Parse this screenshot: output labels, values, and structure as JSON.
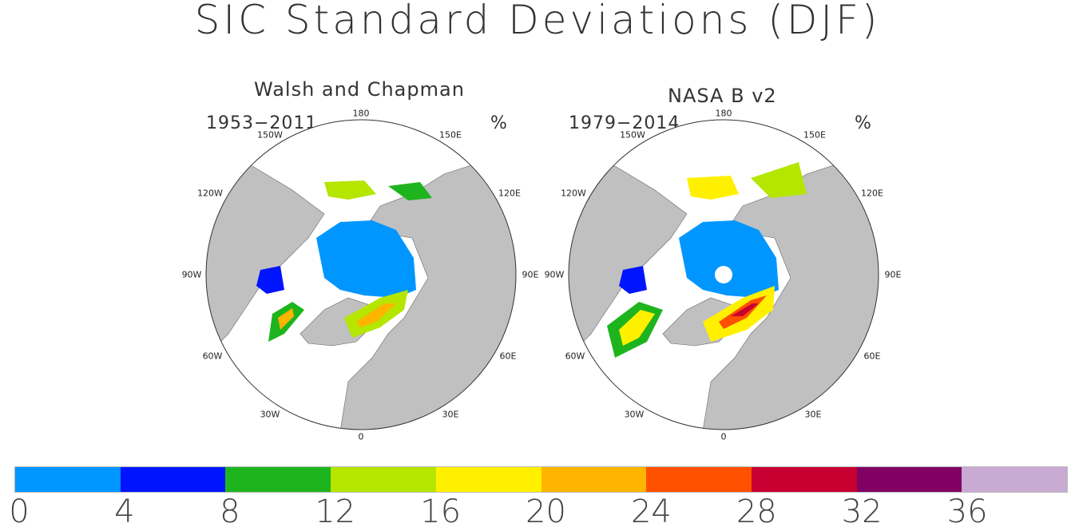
{
  "title": "SIC Standard Deviations (DJF)",
  "unit": "%",
  "panels": [
    {
      "title": "Walsh and Chapman",
      "period": "1953−2011",
      "lon_labels": [
        "180",
        "150E",
        "120E",
        "90E",
        "60E",
        "30E",
        "0",
        "30W",
        "60W",
        "90W",
        "120W",
        "150W"
      ]
    },
    {
      "title": "NASA B v2",
      "period": "1979−2014",
      "lon_labels": [
        "180",
        "150E",
        "120E",
        "90E",
        "60E",
        "30E",
        "0",
        "30W",
        "60W",
        "90W",
        "120W",
        "150W"
      ]
    }
  ],
  "chart_data": {
    "type": "heatmap",
    "title": "SIC Standard Deviations (DJF)",
    "unit": "%",
    "projection": "north polar stereographic",
    "colorbar": {
      "ticks": [
        "0",
        "4",
        "8",
        "12",
        "16",
        "20",
        "24",
        "28",
        "32",
        "36"
      ],
      "bins": [
        {
          "min": 0,
          "max": 4,
          "color": "#0096ff"
        },
        {
          "min": 4,
          "max": 8,
          "color": "#0014ff"
        },
        {
          "min": 8,
          "max": 12,
          "color": "#1eb41e"
        },
        {
          "min": 12,
          "max": 16,
          "color": "#b4e600"
        },
        {
          "min": 16,
          "max": 20,
          "color": "#fff000"
        },
        {
          "min": 20,
          "max": 24,
          "color": "#ffb400"
        },
        {
          "min": 24,
          "max": 28,
          "color": "#ff5000"
        },
        {
          "min": 28,
          "max": 32,
          "color": "#c80032"
        },
        {
          "min": 32,
          "max": 36,
          "color": "#820064"
        },
        {
          "min": 36,
          "max": 40,
          "color": "#c8aad2"
        }
      ]
    },
    "maps": [
      {
        "name": "Walsh and Chapman",
        "period": "1953−2011"
      },
      {
        "name": "NASA B v2",
        "period": "1979−2014"
      }
    ]
  }
}
